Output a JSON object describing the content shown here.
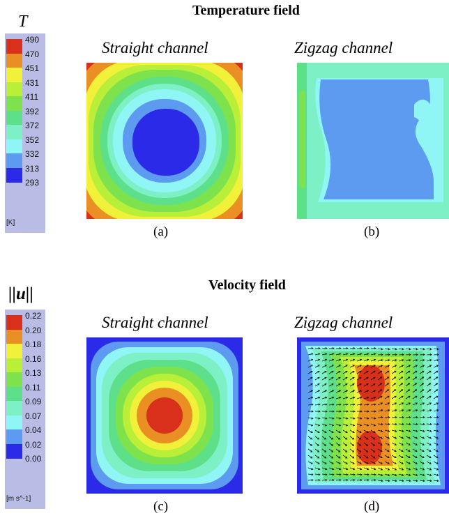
{
  "temperature_section": {
    "title": "Temperature field",
    "colorbar": {
      "symbol": "T",
      "unit": "[K]",
      "ticks": [
        "490",
        "470",
        "451",
        "431",
        "411",
        "392",
        "372",
        "352",
        "332",
        "313",
        "293"
      ],
      "colors": [
        "#d8301a",
        "#ea8f24",
        "#f1f13a",
        "#b9ef38",
        "#7ee24c",
        "#5ee08a",
        "#7ef0c6",
        "#8ff5f5",
        "#5c9bf0",
        "#2a2ae8"
      ]
    },
    "panels": [
      {
        "title": "Straight channel",
        "caption": "(a)"
      },
      {
        "title": "Zigzag channel",
        "caption": "(b)"
      }
    ]
  },
  "velocity_section": {
    "title": "Velocity field",
    "colorbar": {
      "symbol": "||u||",
      "unit": "[m s^-1]",
      "ticks": [
        "0.22",
        "0.20",
        "0.18",
        "0.16",
        "0.13",
        "0.11",
        "0.09",
        "0.07",
        "0.04",
        "0.02",
        "0.00"
      ],
      "colors": [
        "#d8301a",
        "#ea8f24",
        "#f1f13a",
        "#b9ef38",
        "#7ee24c",
        "#5ee08a",
        "#7ef0c6",
        "#8ff5f5",
        "#5c9bf0",
        "#2a2ae8"
      ]
    },
    "panels": [
      {
        "title": "Straight channel",
        "caption": "(c)"
      },
      {
        "title": "Zigzag channel",
        "caption": "(d)"
      }
    ]
  }
}
